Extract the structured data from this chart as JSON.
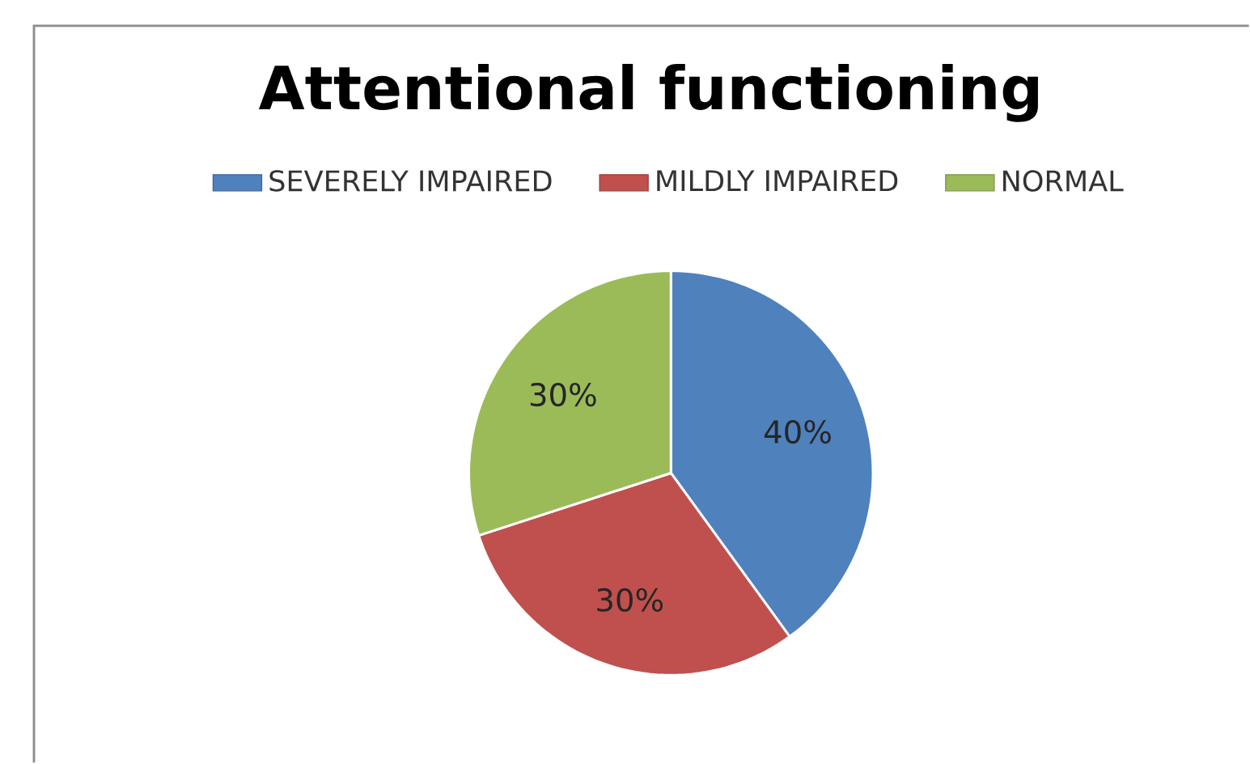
{
  "chart_data": {
    "type": "pie",
    "title": "Attentional functioning",
    "categories": [
      "SEVERELY IMPAIRED",
      "MILDLY IMPAIRED",
      "NORMAL"
    ],
    "values": [
      40,
      30,
      30
    ],
    "colors": [
      "#4f81bd",
      "#c0504d",
      "#9bbb59"
    ],
    "value_labels": [
      "40%",
      "30%",
      "30%"
    ],
    "legend": "top"
  }
}
